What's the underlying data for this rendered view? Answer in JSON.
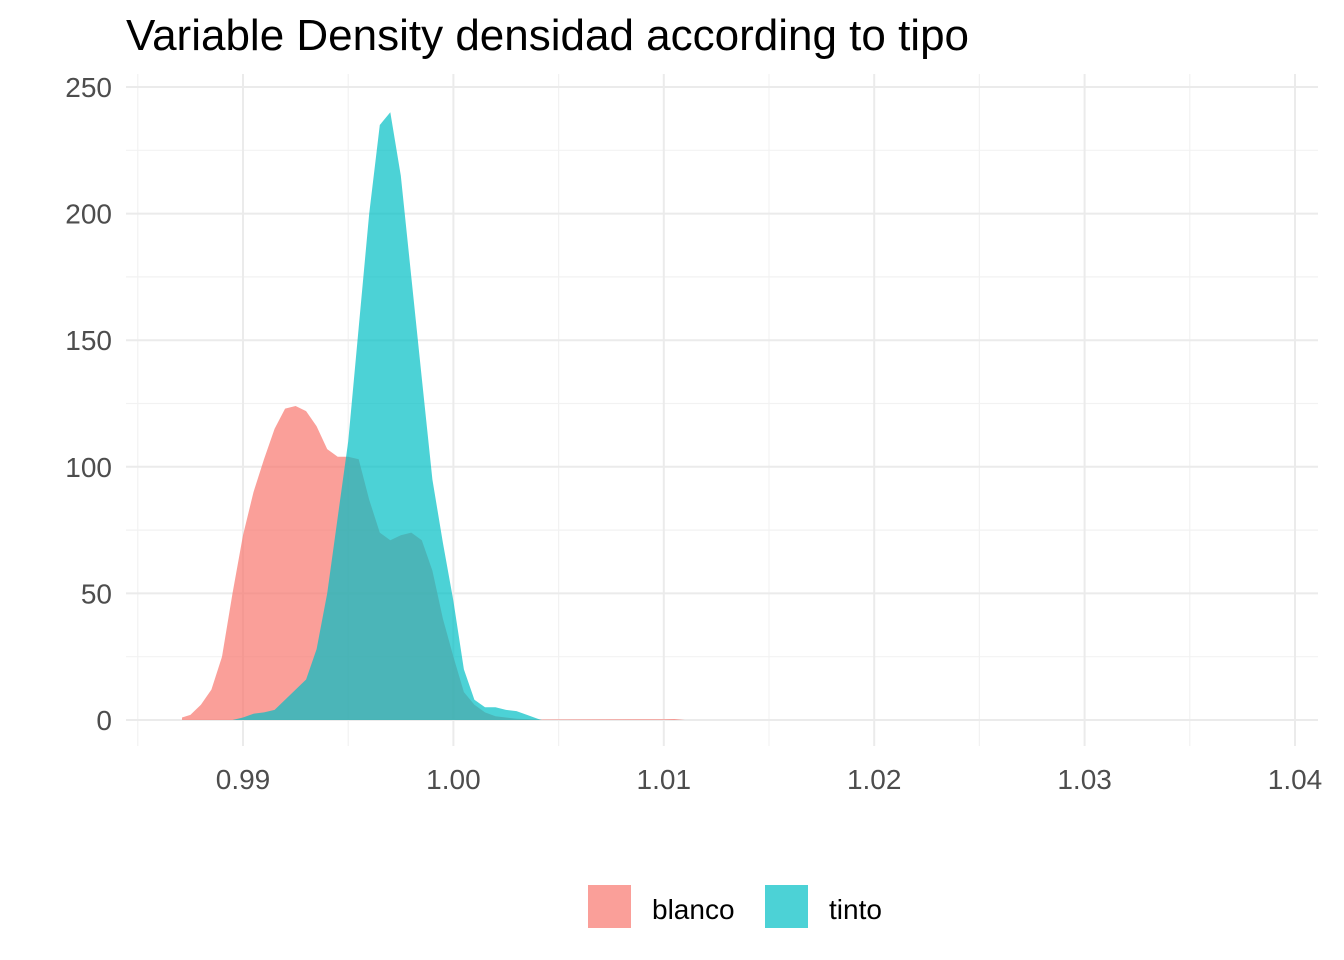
{
  "chart_data": {
    "type": "area",
    "title": "Variable Density densidad according to tipo",
    "xlabel": "",
    "ylabel": "",
    "xlim": [
      0.986,
      1.041
    ],
    "ylim": [
      0,
      250
    ],
    "x_ticks": [
      0.99,
      1.0,
      1.01,
      1.02,
      1.03,
      1.04
    ],
    "x_tick_labels": [
      "0.99",
      "1.00",
      "1.01",
      "1.02",
      "1.03",
      "1.04"
    ],
    "y_ticks": [
      0,
      50,
      100,
      150,
      200,
      250
    ],
    "y_tick_labels": [
      "0",
      "50",
      "100",
      "150",
      "200",
      "250"
    ],
    "grid": true,
    "legend": {
      "position": "bottom",
      "entries": [
        "blanco",
        "tinto"
      ]
    },
    "series": [
      {
        "name": "blanco",
        "color": "#F8766D",
        "opacity": 0.7,
        "points": [
          [
            0.9871,
            0
          ],
          [
            0.9871,
            1
          ],
          [
            0.9875,
            2
          ],
          [
            0.988,
            6
          ],
          [
            0.9885,
            12
          ],
          [
            0.989,
            25
          ],
          [
            0.9895,
            50
          ],
          [
            0.99,
            73
          ],
          [
            0.9905,
            90
          ],
          [
            0.991,
            103
          ],
          [
            0.9915,
            115
          ],
          [
            0.992,
            123
          ],
          [
            0.9925,
            124
          ],
          [
            0.993,
            122
          ],
          [
            0.9935,
            116
          ],
          [
            0.994,
            107
          ],
          [
            0.9945,
            104
          ],
          [
            0.995,
            104
          ],
          [
            0.9955,
            103
          ],
          [
            0.996,
            87
          ],
          [
            0.9965,
            74
          ],
          [
            0.997,
            71
          ],
          [
            0.9975,
            73
          ],
          [
            0.998,
            74
          ],
          [
            0.9985,
            71
          ],
          [
            0.999,
            59
          ],
          [
            0.9995,
            40
          ],
          [
            1.0,
            25
          ],
          [
            1.0005,
            11
          ],
          [
            1.001,
            6
          ],
          [
            1.0015,
            3
          ],
          [
            1.002,
            1.5
          ],
          [
            1.0025,
            1
          ],
          [
            1.003,
            0.5
          ],
          [
            1.004,
            0.2
          ],
          [
            1.01,
            0.3
          ],
          [
            1.0105,
            0.4
          ],
          [
            1.011,
            0
          ]
        ]
      },
      {
        "name": "tinto",
        "color": "#00BFC4",
        "opacity": 0.7,
        "points": [
          [
            0.9895,
            0
          ],
          [
            0.99,
            1
          ],
          [
            0.9905,
            2.5
          ],
          [
            0.991,
            3
          ],
          [
            0.9915,
            4
          ],
          [
            0.992,
            8
          ],
          [
            0.9925,
            12
          ],
          [
            0.993,
            16
          ],
          [
            0.9935,
            28
          ],
          [
            0.994,
            50
          ],
          [
            0.9945,
            80
          ],
          [
            0.995,
            110
          ],
          [
            0.9955,
            155
          ],
          [
            0.996,
            200
          ],
          [
            0.9965,
            235
          ],
          [
            0.997,
            240
          ],
          [
            0.9975,
            215
          ],
          [
            0.998,
            175
          ],
          [
            0.9985,
            135
          ],
          [
            0.999,
            95
          ],
          [
            0.9995,
            70
          ],
          [
            1.0,
            47
          ],
          [
            1.0005,
            20
          ],
          [
            1.001,
            8
          ],
          [
            1.0015,
            5
          ],
          [
            1.002,
            5
          ],
          [
            1.0025,
            4
          ],
          [
            1.003,
            3.5
          ],
          [
            1.0035,
            2
          ],
          [
            1.004,
            0.5
          ],
          [
            1.0042,
            0
          ]
        ]
      }
    ]
  }
}
